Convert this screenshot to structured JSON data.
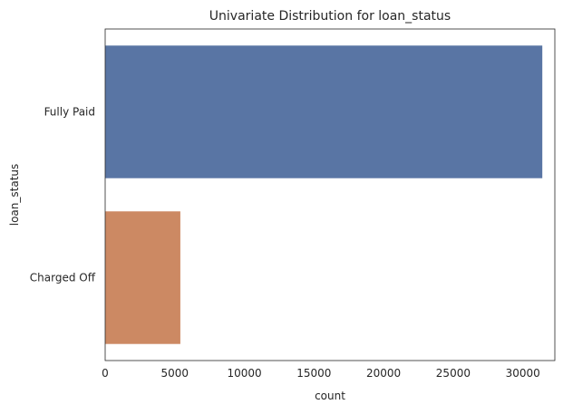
{
  "chart_data": {
    "type": "bar",
    "orientation": "horizontal",
    "title": "Univariate Distribution for loan_status",
    "xlabel": "count",
    "ylabel": "loan_status",
    "categories": [
      "Fully Paid",
      "Charged Off"
    ],
    "values": [
      31400,
      5400
    ],
    "colors": [
      "#5975a4",
      "#cc8963"
    ],
    "xlim": [
      0,
      32300
    ],
    "xticks": [
      0,
      5000,
      10000,
      15000,
      20000,
      25000,
      30000
    ],
    "grid": false,
    "legend": "none"
  }
}
